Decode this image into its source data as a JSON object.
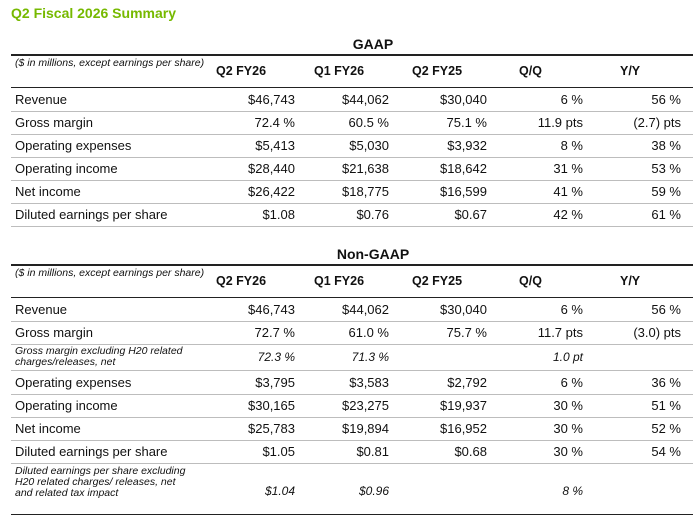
{
  "title": "Q2 Fiscal 2026 Summary",
  "gaap": {
    "heading": "GAAP",
    "note": "($ in millions, except earnings per share)",
    "columns": [
      "Q2 FY26",
      "Q1 FY26",
      "Q2 FY25",
      "Q/Q",
      "Y/Y"
    ],
    "rows": [
      {
        "label": "Revenue",
        "v": [
          "$46,743",
          "$44,062",
          "$30,040",
          "6 %",
          "56 %"
        ]
      },
      {
        "label": "Gross margin",
        "v": [
          "72.4 %",
          "60.5 %",
          "75.1 %",
          "11.9 pts",
          "(2.7) pts"
        ]
      },
      {
        "label": "Operating expenses",
        "v": [
          "$5,413",
          "$5,030",
          "$3,932",
          "8 %",
          "38 %"
        ]
      },
      {
        "label": "Operating income",
        "v": [
          "$28,440",
          "$21,638",
          "$18,642",
          "31 %",
          "53 %"
        ]
      },
      {
        "label": "Net income",
        "v": [
          "$26,422",
          "$18,775",
          "$16,599",
          "41 %",
          "59 %"
        ]
      },
      {
        "label": "Diluted earnings per share",
        "v": [
          "$1.08",
          "$0.76",
          "$0.67",
          "42 %",
          "61 %"
        ]
      }
    ]
  },
  "nongaap": {
    "heading": "Non-GAAP",
    "note": "($ in millions, except earnings per share)",
    "columns": [
      "Q2 FY26",
      "Q1 FY26",
      "Q2 FY25",
      "Q/Q",
      "Y/Y"
    ],
    "rows": [
      {
        "label": "Revenue",
        "v": [
          "$46,743",
          "$44,062",
          "$30,040",
          "6 %",
          "56 %"
        ]
      },
      {
        "label": "Gross margin",
        "v": [
          "72.7 %",
          "61.0 %",
          "75.7 %",
          "11.7 pts",
          "(3.0) pts"
        ]
      },
      {
        "label": "Gross margin excluding H20 related charges/releases, net",
        "v": [
          "72.3 %",
          "71.3 %",
          "",
          "1.0 pt",
          ""
        ]
      },
      {
        "label": "Operating expenses",
        "v": [
          "$3,795",
          "$3,583",
          "$2,792",
          "6 %",
          "36 %"
        ]
      },
      {
        "label": "Operating income",
        "v": [
          "$30,165",
          "$23,275",
          "$19,937",
          "30 %",
          "51 %"
        ]
      },
      {
        "label": "Net income",
        "v": [
          "$25,783",
          "$19,894",
          "$16,952",
          "30 %",
          "52 %"
        ]
      },
      {
        "label": "Diluted earnings per share",
        "v": [
          "$1.05",
          "$0.81",
          "$0.68",
          "30 %",
          "54 %"
        ]
      },
      {
        "label": "Diluted earnings per share excluding H20 related charges/ releases, net and related tax impact",
        "v": [
          "$1.04",
          "$0.96",
          "",
          "8 %",
          ""
        ]
      }
    ]
  }
}
